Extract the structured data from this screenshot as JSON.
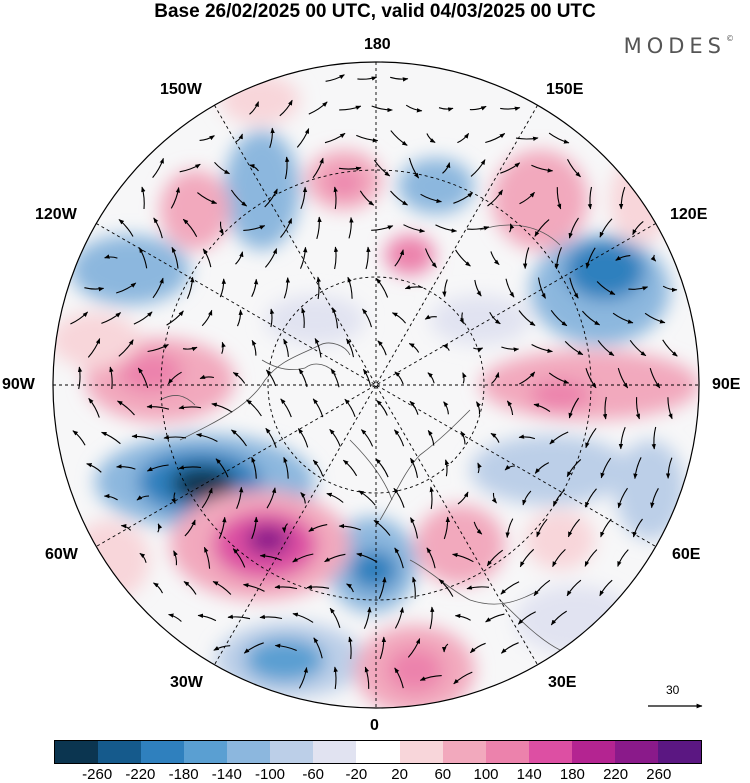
{
  "title": "Base 26/02/2025 00 UTC, valid 04/03/2025 00 UTC",
  "brand": "MODES",
  "brand_mark": "©",
  "longitude_labels": {
    "top": "180",
    "bottom": "0",
    "left": "90W",
    "right": "90E",
    "upper_left": "150W",
    "upper_right": "150E",
    "left_upper": "120W",
    "right_upper": "120E",
    "left_lower": "60W",
    "right_lower": "60E",
    "lower_left": "30W",
    "lower_right": "30E"
  },
  "vector_scale": "30",
  "colorbar": {
    "ticks": [
      "-260",
      "-220",
      "-180",
      "-140",
      "-100",
      "-60",
      "-20",
      "20",
      "60",
      "100",
      "140",
      "180",
      "220",
      "260"
    ],
    "colors": [
      "#0b3550",
      "#155a8c",
      "#2f80be",
      "#5a9fd2",
      "#8cb7de",
      "#bccfe8",
      "#e1e3f1",
      "#ffffff",
      "#f8d6da",
      "#f2a9bd",
      "#ec82ac",
      "#dd4fa3",
      "#b42491",
      "#8a1a8a",
      "#5b1782"
    ]
  }
}
